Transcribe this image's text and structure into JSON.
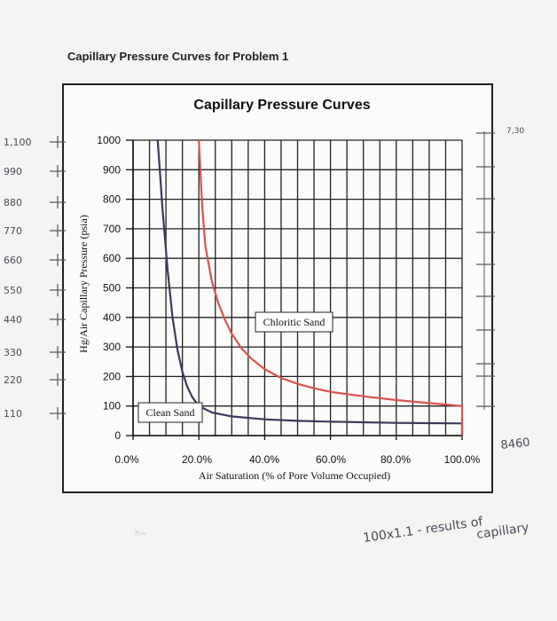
{
  "page_title": "Capillary Pressure Curves for Problem 1",
  "chart_data": {
    "type": "line",
    "title": "Capillary Pressure Curves",
    "xlabel": "Air Saturation (% of Pore Volume Occupied)",
    "ylabel": "Hg/Air Capillary Pressure (psia)",
    "xlim": [
      0,
      100
    ],
    "ylim": [
      0,
      1000
    ],
    "x_ticks": [
      0,
      20,
      40,
      60,
      80,
      100
    ],
    "x_tick_labels": [
      "0.0%",
      "20.0%",
      "40.0%",
      "60.0%",
      "80.0%",
      "100.0%"
    ],
    "y_ticks": [
      0,
      100,
      200,
      300,
      400,
      500,
      600,
      700,
      800,
      900,
      1000
    ],
    "y_tick_labels": [
      "0",
      "100",
      "200",
      "300",
      "400",
      "500",
      "600",
      "700",
      "800",
      "900",
      "1000"
    ],
    "grid": true,
    "series": [
      {
        "name": "Clean Sand",
        "color": "#3a3a5c",
        "x": [
          7.5,
          9,
          10.5,
          12,
          13.5,
          15,
          16.5,
          18,
          20,
          24,
          30,
          40,
          50,
          60,
          70,
          80,
          90,
          100,
          100
        ],
        "y": [
          1000,
          760,
          560,
          400,
          290,
          215,
          165,
          130,
          100,
          78,
          65,
          55,
          50,
          47,
          45,
          43,
          42,
          41,
          0
        ]
      },
      {
        "name": "Chloritic Sand",
        "color": "#d9534f",
        "x": [
          20,
          21,
          22,
          24,
          26,
          28,
          30,
          33,
          36,
          40,
          45,
          50,
          55,
          60,
          70,
          80,
          90,
          100,
          100
        ],
        "y": [
          1000,
          780,
          640,
          520,
          445,
          390,
          345,
          295,
          260,
          225,
          195,
          175,
          160,
          148,
          133,
          120,
          110,
          100,
          0
        ]
      }
    ]
  },
  "handwriting": {
    "y_values": [
      "1,100",
      "990",
      "880",
      "770",
      "660",
      "550",
      "440",
      "330",
      "220",
      "110"
    ],
    "top_right": "7,30",
    "side_right": "8460",
    "note_line1": "100x1.1 - results of",
    "note_line2": "capillary",
    "stray": "h="
  }
}
